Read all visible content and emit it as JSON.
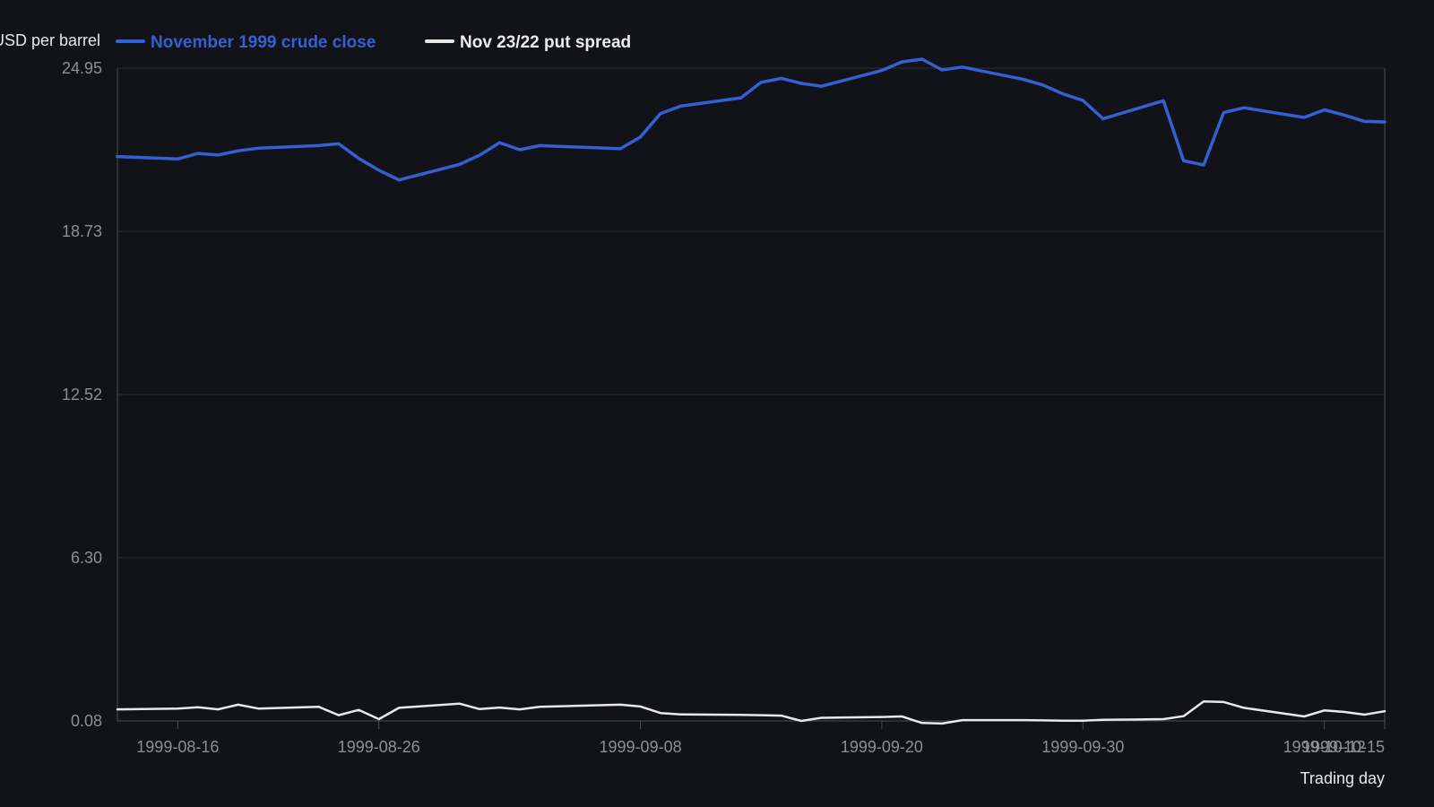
{
  "chart_data": {
    "type": "line",
    "ylabel": "USD per barrel",
    "xlabel": "Trading day",
    "y_ticks": [
      "0.08",
      "6.30",
      "12.52",
      "18.73",
      "24.95"
    ],
    "ylim": [
      0.08,
      24.95
    ],
    "x_ticks": [
      "1999-08-16",
      "1999-08-26",
      "1999-09-08",
      "1999-09-20",
      "1999-09-30",
      "1999-10-12",
      "1999-10-15"
    ],
    "legend_position": "top-left",
    "grid": true,
    "x": [
      "1999-08-13",
      "1999-08-16",
      "1999-08-17",
      "1999-08-18",
      "1999-08-19",
      "1999-08-20",
      "1999-08-23",
      "1999-08-24",
      "1999-08-25",
      "1999-08-26",
      "1999-08-27",
      "1999-08-30",
      "1999-08-31",
      "1999-09-01",
      "1999-09-02",
      "1999-09-03",
      "1999-09-07",
      "1999-09-08",
      "1999-09-09",
      "1999-09-10",
      "1999-09-13",
      "1999-09-14",
      "1999-09-15",
      "1999-09-16",
      "1999-09-17",
      "1999-09-20",
      "1999-09-21",
      "1999-09-22",
      "1999-09-23",
      "1999-09-24",
      "1999-09-27",
      "1999-09-28",
      "1999-09-29",
      "1999-09-30",
      "1999-10-01",
      "1999-10-04",
      "1999-10-05",
      "1999-10-06",
      "1999-10-07",
      "1999-10-08",
      "1999-10-11",
      "1999-10-12",
      "1999-10-13",
      "1999-10-14",
      "1999-10-15"
    ],
    "series": [
      {
        "name": "November 1999 crude close",
        "color": "#3460d4",
        "values": [
          21.58,
          21.49,
          21.7,
          21.64,
          21.8,
          21.9,
          22.0,
          22.07,
          21.51,
          21.06,
          20.69,
          21.28,
          21.63,
          22.11,
          21.84,
          22.0,
          21.88,
          22.33,
          23.22,
          23.5,
          23.82,
          24.41,
          24.56,
          24.37,
          24.26,
          24.86,
          25.19,
          25.29,
          24.88,
          24.99,
          24.53,
          24.31,
          23.97,
          23.72,
          23.02,
          23.71,
          21.42,
          21.26,
          23.26,
          23.44,
          23.07,
          23.36,
          23.16,
          22.92,
          22.9
        ]
      },
      {
        "name": "Nov 23/22 put spread",
        "color": "#e8e8e8",
        "values": [
          0.52,
          0.55,
          0.6,
          0.52,
          0.7,
          0.55,
          0.62,
          0.3,
          0.5,
          0.15,
          0.58,
          0.74,
          0.53,
          0.59,
          0.52,
          0.62,
          0.7,
          0.63,
          0.38,
          0.33,
          0.31,
          0.3,
          0.28,
          0.08,
          0.2,
          0.23,
          0.25,
          0.0,
          -0.02,
          0.11,
          0.11,
          0.1,
          0.09,
          0.09,
          0.12,
          0.15,
          0.26,
          0.82,
          0.8,
          0.58,
          0.25,
          0.48,
          0.42,
          0.32,
          0.45
        ]
      }
    ]
  }
}
